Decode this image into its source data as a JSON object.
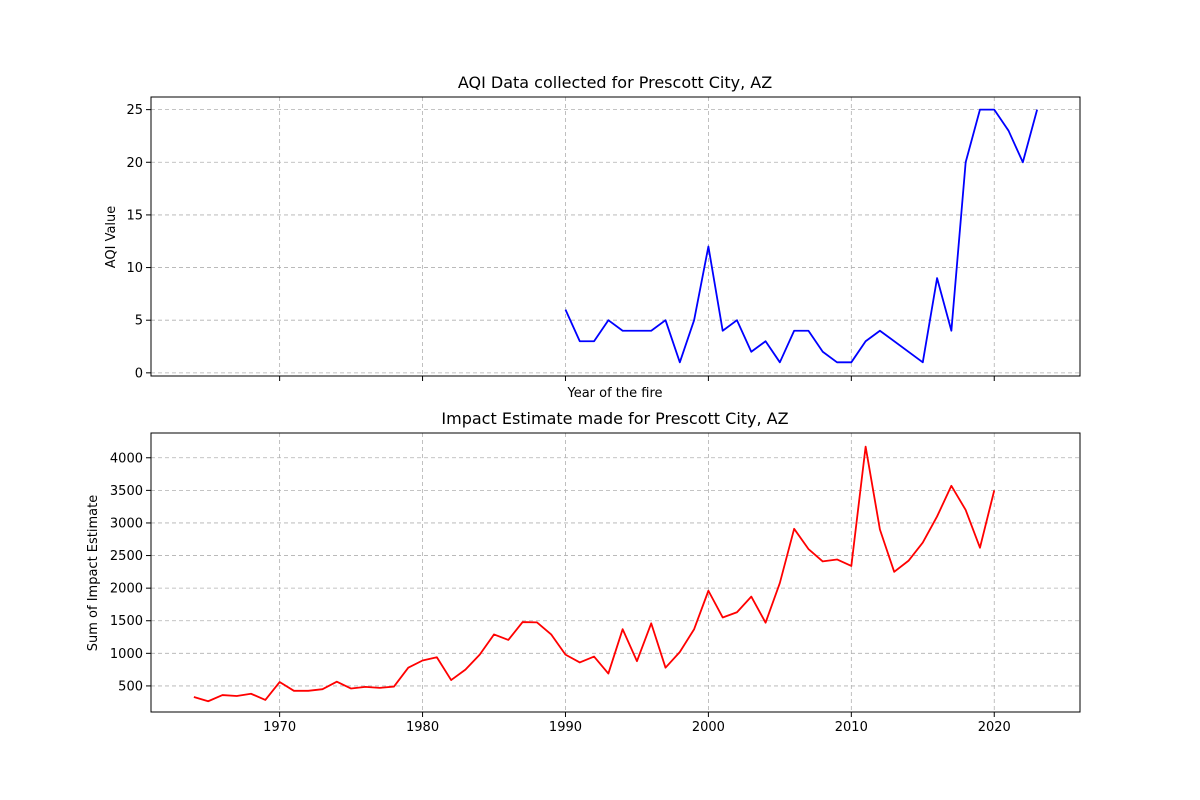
{
  "chart_data": [
    {
      "type": "line",
      "title": "AQI Data collected for Prescott City, AZ",
      "xlabel": "Year of the fire",
      "ylabel": "AQI Value",
      "xlim": [
        1961,
        2026
      ],
      "ylim": [
        -0.3,
        26.2
      ],
      "xticks": [
        1970,
        1980,
        1990,
        2000,
        2010,
        2020
      ],
      "show_xtick_labels": false,
      "yticks": [
        0,
        5,
        10,
        15,
        20,
        25
      ],
      "ytick_labels": [
        "0",
        "5",
        "10",
        "15",
        "20",
        "25"
      ],
      "grid": true,
      "series": [
        {
          "color": "#0000ff",
          "x": [
            1990,
            1991,
            1992,
            1993,
            1994,
            1995,
            1996,
            1997,
            1998,
            1999,
            2000,
            2001,
            2002,
            2003,
            2004,
            2005,
            2006,
            2007,
            2008,
            2009,
            2010,
            2011,
            2012,
            2015,
            2016,
            2017,
            2018,
            2019,
            2020,
            2021,
            2022,
            2023
          ],
          "values": [
            6,
            3,
            3,
            5,
            4,
            4,
            4,
            5,
            1,
            5,
            12,
            4,
            5,
            2,
            3,
            1,
            4,
            4,
            2,
            1,
            1,
            3,
            4,
            1,
            9,
            4,
            20,
            25,
            25,
            23,
            20,
            25
          ]
        }
      ]
    },
    {
      "type": "line",
      "title": "Impact Estimate made for Prescott City, AZ",
      "xlabel": "",
      "ylabel": "Sum of Impact Estimate",
      "xlim": [
        1961,
        2026
      ],
      "ylim": [
        100,
        4380
      ],
      "xticks": [
        1970,
        1980,
        1990,
        2000,
        2010,
        2020
      ],
      "xtick_labels": [
        "1970",
        "1980",
        "1990",
        "2000",
        "2010",
        "2020"
      ],
      "show_xtick_labels": true,
      "yticks": [
        500,
        1000,
        1500,
        2000,
        2500,
        3000,
        3500,
        4000
      ],
      "ytick_labels": [
        "500",
        "1000",
        "1500",
        "2000",
        "2500",
        "3000",
        "3500",
        "4000"
      ],
      "grid": true,
      "series": [
        {
          "color": "#ff0000",
          "x": [
            1964,
            1965,
            1966,
            1967,
            1968,
            1969,
            1970,
            1971,
            1972,
            1973,
            1974,
            1975,
            1976,
            1977,
            1978,
            1979,
            1980,
            1981,
            1982,
            1983,
            1984,
            1985,
            1986,
            1987,
            1988,
            1989,
            1990,
            1991,
            1992,
            1993,
            1994,
            1995,
            1996,
            1997,
            1998,
            1999,
            2000,
            2001,
            2002,
            2003,
            2004,
            2005,
            2006,
            2007,
            2008,
            2009,
            2010,
            2011,
            2012,
            2013,
            2014,
            2015,
            2016,
            2017,
            2018,
            2019,
            2020
          ],
          "values": [
            330,
            265,
            360,
            345,
            380,
            285,
            560,
            425,
            425,
            450,
            565,
            460,
            485,
            470,
            490,
            780,
            890,
            940,
            590,
            750,
            980,
            1290,
            1205,
            1480,
            1475,
            1290,
            980,
            860,
            950,
            690,
            1370,
            880,
            1460,
            780,
            1020,
            1370,
            1960,
            1550,
            1630,
            1870,
            1470,
            2080,
            2910,
            2600,
            2410,
            2440,
            2340,
            4170,
            2900,
            2250,
            2420,
            2700,
            3100,
            3570,
            3200,
            2620,
            3500
          ]
        }
      ]
    }
  ]
}
